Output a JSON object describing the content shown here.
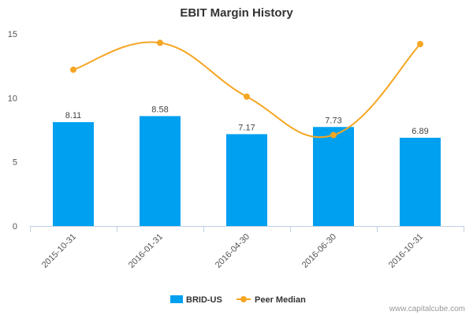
{
  "chart_data": {
    "type": "bar",
    "title": "EBIT Margin History",
    "categories": [
      "2015-10-31",
      "2016-01-31",
      "2016-04-30",
      "2016-06-30",
      "2016-10-31"
    ],
    "series": [
      {
        "name": "BRID-US",
        "type": "bar",
        "color": "#00a0f0",
        "values": [
          8.11,
          8.58,
          7.17,
          7.73,
          6.89
        ],
        "labels": [
          "8.11",
          "8.58",
          "7.17",
          "7.73",
          "6.89"
        ]
      },
      {
        "name": "Peer Median",
        "type": "line",
        "color": "#f5a623",
        "values": [
          12.2,
          14.3,
          10.1,
          7.1,
          14.2
        ]
      }
    ],
    "yticks": [
      "0",
      "5",
      "10",
      "15"
    ],
    "ylim": [
      0,
      15
    ],
    "grid": false,
    "legend": "bottom-center"
  },
  "credit": "www.capitalcube.com"
}
